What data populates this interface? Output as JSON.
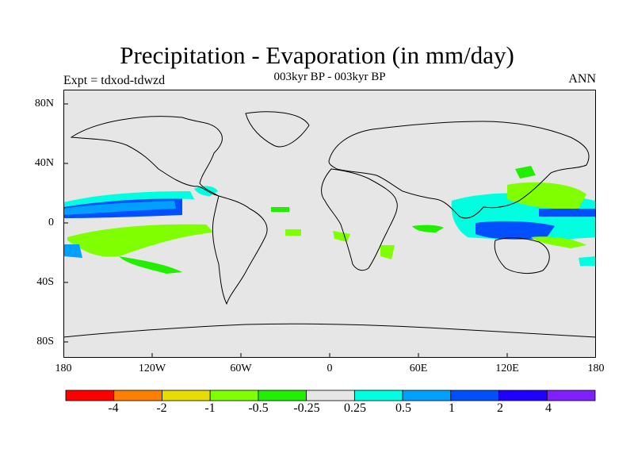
{
  "title": "Precipitation - Evaporation (in mm/day)",
  "subtitle": "003kyr BP - 003kyr BP",
  "left_label": "Expt = tdxod-tdwzd",
  "right_label": "ANN",
  "map": {
    "ocean_land_fill": "#e6e6e6",
    "coastline_color": "#000000"
  },
  "lat_ticks": [
    "80N",
    "40N",
    "0",
    "40S",
    "80S"
  ],
  "lon_ticks": [
    "180",
    "120W",
    "60W",
    "0",
    "60E",
    "120E",
    "180"
  ],
  "colorbar": {
    "colors": [
      "#ff0000",
      "#ff8000",
      "#e6dc00",
      "#80ff00",
      "#22ee00",
      "#e6e6e6",
      "#00ffe0",
      "#00a0ff",
      "#0050ff",
      "#2000ff",
      "#8020ff"
    ],
    "labels": [
      "-4",
      "-2",
      "-1",
      "-0.5",
      "-0.25",
      "0.25",
      "0.5",
      "1",
      "2",
      "4"
    ]
  }
}
